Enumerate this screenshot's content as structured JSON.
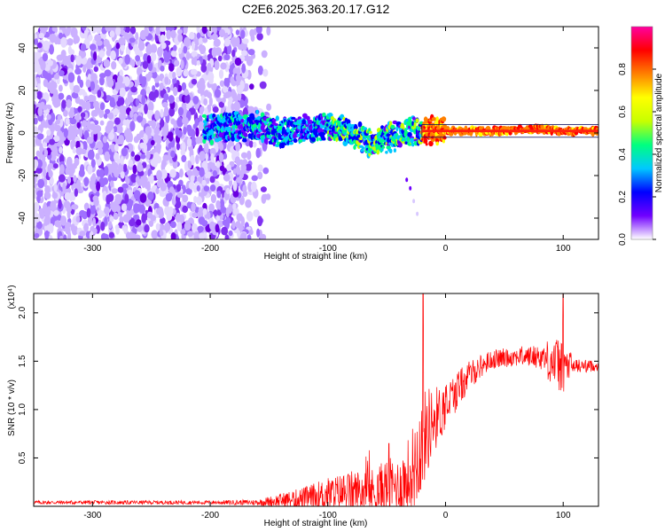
{
  "title": "C2E6.2025.363.20.17.G12",
  "chart_data": [
    {
      "type": "heatmap",
      "name": "spectrogram",
      "xlabel": "Height of straight line (km)",
      "ylabel": "Frequency (Hz)",
      "xlim": [
        -350,
        130
      ],
      "ylim": [
        -50,
        50
      ],
      "xticks": [
        -300,
        -200,
        -100,
        0,
        100
      ],
      "xtick_labels": [
        "-300",
        "-200",
        "-100",
        "0",
        "100"
      ],
      "yticks": [
        -40,
        -20,
        0,
        20,
        40
      ],
      "ytick_labels": [
        "-40",
        "-20",
        "0",
        "20",
        "40"
      ],
      "ridge": {
        "x": [
          -205,
          -180,
          -160,
          -140,
          -120,
          -100,
          -80,
          -60,
          -50,
          -40,
          -30,
          -20,
          0,
          50,
          80,
          100,
          130
        ],
        "y": [
          2,
          3,
          3,
          0,
          2,
          3,
          0,
          -5,
          -2,
          -1,
          1,
          1,
          1,
          1,
          2,
          1,
          1
        ]
      },
      "colorbar": {
        "label": "Normalized spectral amplitude",
        "range": [
          0.0,
          1.0
        ],
        "ticks": [
          0.0,
          0.2,
          0.4,
          0.6,
          0.8
        ],
        "tick_labels": [
          "0.0",
          "0.2",
          "0.4",
          "0.6",
          "0.8"
        ],
        "colors": [
          "#ffffff",
          "#7000ff",
          "#0000ff",
          "#00c8ff",
          "#00ff80",
          "#c8ff00",
          "#ffff00",
          "#ff8000",
          "#ff0000",
          "#ff00a0"
        ]
      }
    },
    {
      "type": "line",
      "name": "snr",
      "xlabel": "Height of straight line (km)",
      "ylabel": "SNR (10 * v/v)",
      "yscale_label": "(x10⁴)",
      "xlim": [
        -350,
        130
      ],
      "ylim": [
        0,
        2.2
      ],
      "xticks": [
        -300,
        -200,
        -100,
        0,
        100
      ],
      "xtick_labels": [
        "-300",
        "-200",
        "-100",
        "0",
        "100"
      ],
      "yticks": [
        0.5,
        1.0,
        1.5,
        2.0
      ],
      "ytick_labels": [
        "0.5",
        "1.0",
        "1.5",
        "2.0"
      ],
      "line_color": "#ff0000",
      "envelope": {
        "x": [
          -350,
          -300,
          -200,
          -160,
          -120,
          -100,
          -80,
          -60,
          -50,
          -40,
          -30,
          -25,
          -20,
          -15,
          -10,
          -5,
          0,
          10,
          20,
          30,
          40,
          60,
          80,
          90,
          100,
          110,
          130
        ],
        "base": [
          0.04,
          0.04,
          0.04,
          0.04,
          0.08,
          0.12,
          0.15,
          0.15,
          0.2,
          0.2,
          0.3,
          0.5,
          0.65,
          0.8,
          0.9,
          0.95,
          1.05,
          1.2,
          1.35,
          1.45,
          1.52,
          1.55,
          1.55,
          1.5,
          1.45,
          1.45,
          1.45
        ],
        "noise": [
          0.02,
          0.02,
          0.02,
          0.03,
          0.12,
          0.18,
          0.22,
          0.25,
          0.3,
          0.3,
          0.45,
          0.5,
          0.5,
          0.45,
          0.35,
          0.3,
          0.25,
          0.2,
          0.15,
          0.12,
          0.1,
          0.1,
          0.12,
          0.25,
          0.3,
          0.08,
          0.05
        ]
      },
      "spikes": [
        {
          "x": -19,
          "y": 2.2
        },
        {
          "x": -48,
          "y": 0.65
        },
        {
          "x": 100,
          "y": 2.2
        },
        {
          "x": 95,
          "y": 1.65
        }
      ]
    }
  ]
}
